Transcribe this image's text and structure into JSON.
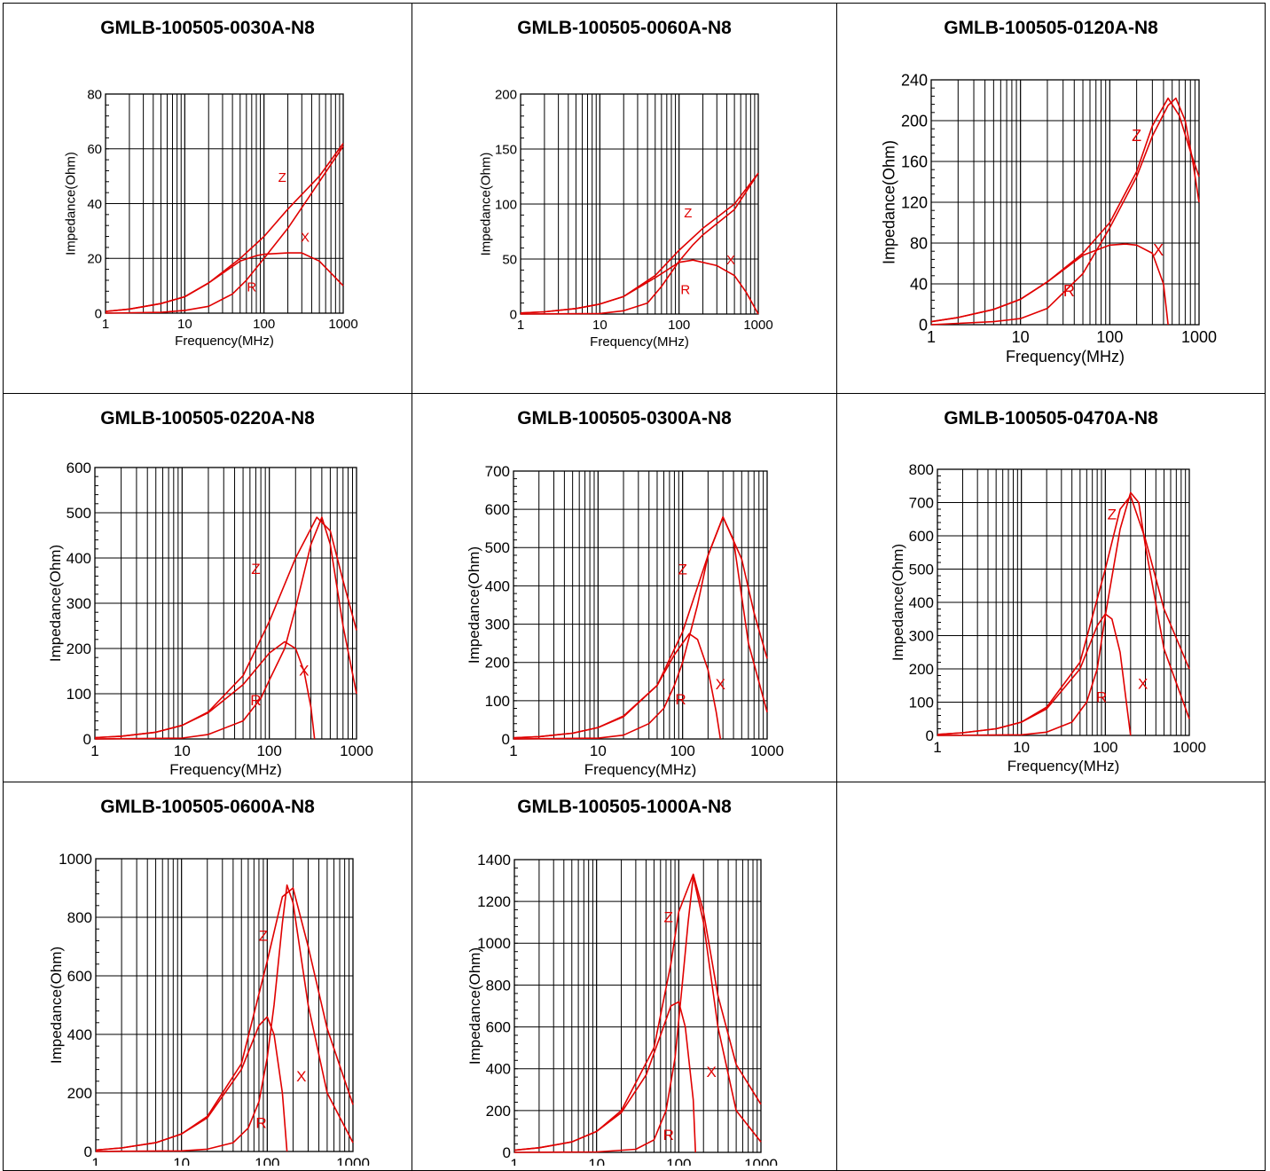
{
  "colors": {
    "curve": "#e00000",
    "grid": "#000000",
    "label": "#e00000"
  },
  "chart_data": [
    {
      "title": "GMLB-100505-0030A-N8",
      "type": "line",
      "xscale": "log",
      "xlim": [
        1,
        1000
      ],
      "ylim": [
        0,
        80
      ],
      "xticks": [
        "1",
        "10",
        "100",
        "1000"
      ],
      "yticks": [
        "0",
        "20",
        "40",
        "60",
        "80"
      ],
      "xlabel": "Frequency(MHz)",
      "ylabel": "Impedance(Ohm)",
      "series": [
        {
          "name": "Z",
          "x": [
            1,
            2,
            5,
            10,
            20,
            50,
            100,
            200,
            500,
            1000
          ],
          "y": [
            0.6,
            1.5,
            3.5,
            6,
            11,
            20,
            28,
            38,
            50,
            62
          ]
        },
        {
          "name": "X",
          "x": [
            1,
            2,
            5,
            10,
            20,
            50,
            80,
            100,
            200,
            300,
            500,
            1000
          ],
          "y": [
            0.6,
            1.5,
            3.5,
            6,
            11,
            19,
            21,
            21.5,
            22,
            22,
            19,
            10
          ]
        },
        {
          "name": "R",
          "x": [
            1,
            5,
            10,
            20,
            40,
            60,
            100,
            200,
            500,
            1000
          ],
          "y": [
            0,
            0.3,
            1,
            2.5,
            7,
            12,
            20,
            31,
            48,
            61
          ]
        }
      ],
      "curve_labels": [
        {
          "text": "Z",
          "x": 170,
          "y": 48
        },
        {
          "text": "X",
          "x": 330,
          "y": 26
        },
        {
          "text": "R",
          "x": 70,
          "y": 8
        }
      ]
    },
    {
      "title": "GMLB-100505-0060A-N8",
      "type": "line",
      "xscale": "log",
      "xlim": [
        1,
        1000
      ],
      "ylim": [
        0,
        200
      ],
      "xticks": [
        "1",
        "10",
        "100",
        "1000"
      ],
      "yticks": [
        "0",
        "50",
        "100",
        "150",
        "200"
      ],
      "xlabel": "Frequency(MHz)",
      "ylabel": "Impedance(Ohm)",
      "series": [
        {
          "name": "Z",
          "x": [
            1,
            2,
            5,
            10,
            20,
            50,
            100,
            200,
            500,
            1000
          ],
          "y": [
            1,
            2,
            5,
            9,
            16,
            35,
            58,
            78,
            100,
            128
          ]
        },
        {
          "name": "X",
          "x": [
            1,
            2,
            5,
            10,
            20,
            50,
            100,
            150,
            300,
            500,
            700,
            1000
          ],
          "y": [
            1,
            2,
            5,
            9,
            16,
            33,
            47,
            49,
            44,
            35,
            20,
            0
          ]
        },
        {
          "name": "R",
          "x": [
            1,
            10,
            20,
            40,
            60,
            100,
            150,
            200,
            500,
            1000
          ],
          "y": [
            0,
            0.5,
            3,
            10,
            25,
            48,
            63,
            72,
            95,
            128
          ]
        }
      ],
      "curve_labels": [
        {
          "text": "Z",
          "x": 130,
          "y": 88
        },
        {
          "text": "X",
          "x": 450,
          "y": 45
        },
        {
          "text": "R",
          "x": 120,
          "y": 18
        }
      ]
    },
    {
      "title": "GMLB-100505-0120A-N8",
      "type": "line",
      "xscale": "log",
      "xlim": [
        1,
        1000
      ],
      "ylim": [
        0,
        240
      ],
      "xticks": [
        "1",
        "10",
        "100",
        "1000"
      ],
      "yticks": [
        "0",
        "40",
        "80",
        "120",
        "160",
        "200",
        "240"
      ],
      "xlabel": "Frequency(MHz)",
      "ylabel": "Impedance(Ohm)",
      "series": [
        {
          "name": "Z",
          "x": [
            1,
            2,
            5,
            10,
            20,
            50,
            100,
            200,
            300,
            450,
            600,
            800,
            1000
          ],
          "y": [
            3,
            7,
            15,
            25,
            42,
            70,
            100,
            150,
            195,
            222,
            205,
            170,
            145
          ]
        },
        {
          "name": "X",
          "x": [
            1,
            2,
            5,
            10,
            20,
            50,
            100,
            150,
            200,
            300,
            400,
            450
          ],
          "y": [
            3,
            7,
            15,
            25,
            42,
            68,
            78,
            79,
            78,
            70,
            40,
            0
          ]
        },
        {
          "name": "R",
          "x": [
            1,
            5,
            10,
            20,
            50,
            100,
            200,
            300,
            450,
            550,
            700,
            850,
            1000
          ],
          "y": [
            0,
            3,
            6,
            16,
            50,
            95,
            145,
            185,
            215,
            222,
            200,
            160,
            120
          ]
        }
      ],
      "curve_labels": [
        {
          "text": "Z",
          "x": 200,
          "y": 180
        },
        {
          "text": "X",
          "x": 350,
          "y": 68
        },
        {
          "text": "R",
          "x": 35,
          "y": 28
        }
      ]
    },
    {
      "title": "GMLB-100505-0220A-N8",
      "type": "line",
      "xscale": "log",
      "xlim": [
        1,
        1000
      ],
      "ylim": [
        0,
        600
      ],
      "xticks": [
        "1",
        "10",
        "100",
        "1000"
      ],
      "yticks": [
        "0",
        "100",
        "200",
        "300",
        "400",
        "500",
        "600"
      ],
      "xlabel": "Frequency(MHz)",
      "ylabel": "Impedance(Ohm)",
      "series": [
        {
          "name": "Z",
          "x": [
            1,
            2,
            5,
            10,
            20,
            50,
            100,
            200,
            350,
            500,
            700,
            1000
          ],
          "y": [
            3,
            6,
            15,
            30,
            60,
            140,
            260,
            400,
            490,
            460,
            350,
            240
          ]
        },
        {
          "name": "X",
          "x": [
            1,
            2,
            5,
            10,
            20,
            50,
            100,
            150,
            200,
            250,
            300,
            330
          ],
          "y": [
            3,
            6,
            15,
            30,
            58,
            120,
            190,
            215,
            200,
            150,
            70,
            0
          ]
        },
        {
          "name": "R",
          "x": [
            1,
            10,
            20,
            50,
            80,
            100,
            150,
            200,
            300,
            400,
            500,
            700,
            1000
          ],
          "y": [
            0,
            2,
            10,
            40,
            90,
            130,
            200,
            290,
            430,
            490,
            430,
            250,
            100
          ]
        }
      ],
      "curve_labels": [
        {
          "text": "Z",
          "x": 70,
          "y": 365
        },
        {
          "text": "X",
          "x": 250,
          "y": 140
        },
        {
          "text": "R",
          "x": 70,
          "y": 75
        }
      ]
    },
    {
      "title": "GMLB-100505-0300A-N8",
      "type": "line",
      "xscale": "log",
      "xlim": [
        1,
        1000
      ],
      "ylim": [
        0,
        700
      ],
      "xticks": [
        "1",
        "10",
        "100",
        "1000"
      ],
      "yticks": [
        "0",
        "100",
        "200",
        "300",
        "400",
        "500",
        "600",
        "700"
      ],
      "xlabel": "Frequency(MHz)",
      "ylabel": "Impedance(Ohm)",
      "series": [
        {
          "name": "Z",
          "x": [
            1,
            2,
            5,
            10,
            20,
            50,
            100,
            200,
            300,
            500,
            700,
            1000
          ],
          "y": [
            3,
            6,
            15,
            30,
            60,
            140,
            280,
            480,
            580,
            470,
            330,
            210
          ]
        },
        {
          "name": "X",
          "x": [
            1,
            2,
            5,
            10,
            20,
            50,
            80,
            120,
            150,
            200,
            250,
            280
          ],
          "y": [
            3,
            6,
            15,
            30,
            58,
            140,
            220,
            275,
            260,
            180,
            70,
            0
          ]
        },
        {
          "name": "R",
          "x": [
            1,
            10,
            20,
            40,
            60,
            80,
            100,
            150,
            200,
            300,
            400,
            600,
            1000
          ],
          "y": [
            0,
            2,
            10,
            40,
            80,
            140,
            200,
            350,
            480,
            580,
            520,
            250,
            70
          ]
        }
      ],
      "curve_labels": [
        {
          "text": "Z",
          "x": 100,
          "y": 430
        },
        {
          "text": "X",
          "x": 280,
          "y": 130
        },
        {
          "text": "R",
          "x": 95,
          "y": 90
        }
      ]
    },
    {
      "title": "GMLB-100505-0470A-N8",
      "type": "line",
      "xscale": "log",
      "xlim": [
        1,
        1000
      ],
      "ylim": [
        0,
        800
      ],
      "xticks": [
        "1",
        "10",
        "100",
        "1000"
      ],
      "yticks": [
        "0",
        "100",
        "200",
        "300",
        "400",
        "500",
        "600",
        "700",
        "800"
      ],
      "xlabel": "Frequency(MHz)",
      "ylabel": "Impedance(Ohm)",
      "series": [
        {
          "name": "Z",
          "x": [
            1,
            2,
            5,
            10,
            20,
            50,
            100,
            150,
            200,
            300,
            500,
            1000
          ],
          "y": [
            3,
            8,
            20,
            40,
            85,
            220,
            500,
            680,
            720,
            590,
            380,
            200
          ]
        },
        {
          "name": "X",
          "x": [
            1,
            2,
            5,
            10,
            20,
            50,
            80,
            100,
            120,
            150,
            180,
            200
          ],
          "y": [
            3,
            8,
            20,
            40,
            80,
            200,
            330,
            365,
            350,
            250,
            90,
            0
          ]
        },
        {
          "name": "R",
          "x": [
            1,
            10,
            20,
            40,
            60,
            80,
            100,
            150,
            200,
            250,
            300,
            500,
            1000
          ],
          "y": [
            0,
            2,
            10,
            40,
            100,
            200,
            360,
            620,
            730,
            700,
            570,
            260,
            50
          ]
        }
      ],
      "curve_labels": [
        {
          "text": "Z",
          "x": 120,
          "y": 650
        },
        {
          "text": "X",
          "x": 280,
          "y": 140
        },
        {
          "text": "R",
          "x": 90,
          "y": 100
        }
      ]
    },
    {
      "title": "GMLB-100505-0600A-N8",
      "type": "line",
      "xscale": "log",
      "xlim": [
        1,
        1000
      ],
      "ylim": [
        0,
        1000
      ],
      "xticks": [
        "1",
        "10",
        "100",
        "1000"
      ],
      "yticks": [
        "0",
        "200",
        "400",
        "600",
        "800",
        "1000"
      ],
      "xlabel": "Frequency(MHz)",
      "ylabel": "Impedance(Ohm)",
      "series": [
        {
          "name": "Z",
          "x": [
            1,
            2,
            5,
            10,
            20,
            50,
            100,
            150,
            200,
            300,
            500,
            1000
          ],
          "y": [
            5,
            12,
            30,
            60,
            120,
            300,
            650,
            870,
            900,
            700,
            420,
            160
          ]
        },
        {
          "name": "X",
          "x": [
            1,
            2,
            5,
            10,
            20,
            50,
            80,
            100,
            120,
            150,
            170
          ],
          "y": [
            5,
            12,
            30,
            60,
            115,
            280,
            430,
            460,
            400,
            200,
            0
          ]
        },
        {
          "name": "R",
          "x": [
            1,
            10,
            20,
            40,
            60,
            80,
            100,
            120,
            150,
            170,
            200,
            300,
            500,
            1000
          ],
          "y": [
            0,
            2,
            8,
            30,
            80,
            170,
            320,
            500,
            780,
            910,
            850,
            500,
            200,
            30
          ]
        }
      ],
      "curve_labels": [
        {
          "text": "Z",
          "x": 90,
          "y": 720
        },
        {
          "text": "X",
          "x": 250,
          "y": 240
        },
        {
          "text": "R",
          "x": 85,
          "y": 80
        }
      ]
    },
    {
      "title": "GMLB-100505-1000A-N8",
      "type": "line",
      "xscale": "log",
      "xlim": [
        1,
        1000
      ],
      "ylim": [
        0,
        1400
      ],
      "xticks": [
        "1",
        "10",
        "100",
        "1000"
      ],
      "yticks": [
        "0",
        "200",
        "400",
        "600",
        "800",
        "1000",
        "1200",
        "1400"
      ],
      "xlabel": "Frequency(MHz)",
      "ylabel": "Impedance(Ohm)",
      "series": [
        {
          "name": "Z",
          "x": [
            1,
            2,
            5,
            10,
            20,
            50,
            80,
            100,
            150,
            200,
            300,
            500,
            1000
          ],
          "y": [
            10,
            22,
            50,
            100,
            200,
            500,
            900,
            1150,
            1330,
            1150,
            750,
            420,
            230
          ]
        },
        {
          "name": "X",
          "x": [
            1,
            2,
            5,
            10,
            20,
            40,
            60,
            80,
            100,
            120,
            150,
            160
          ],
          "y": [
            10,
            22,
            50,
            100,
            190,
            370,
            560,
            700,
            720,
            600,
            250,
            0
          ]
        },
        {
          "name": "R",
          "x": [
            1,
            10,
            30,
            50,
            70,
            90,
            110,
            130,
            150,
            200,
            300,
            500,
            1000
          ],
          "y": [
            0,
            2,
            15,
            60,
            200,
            450,
            800,
            1100,
            1320,
            1100,
            600,
            200,
            50
          ]
        }
      ],
      "curve_labels": [
        {
          "text": "Z",
          "x": 75,
          "y": 1100
        },
        {
          "text": "X",
          "x": 250,
          "y": 360
        },
        {
          "text": "R",
          "x": 75,
          "y": 60
        }
      ]
    }
  ]
}
